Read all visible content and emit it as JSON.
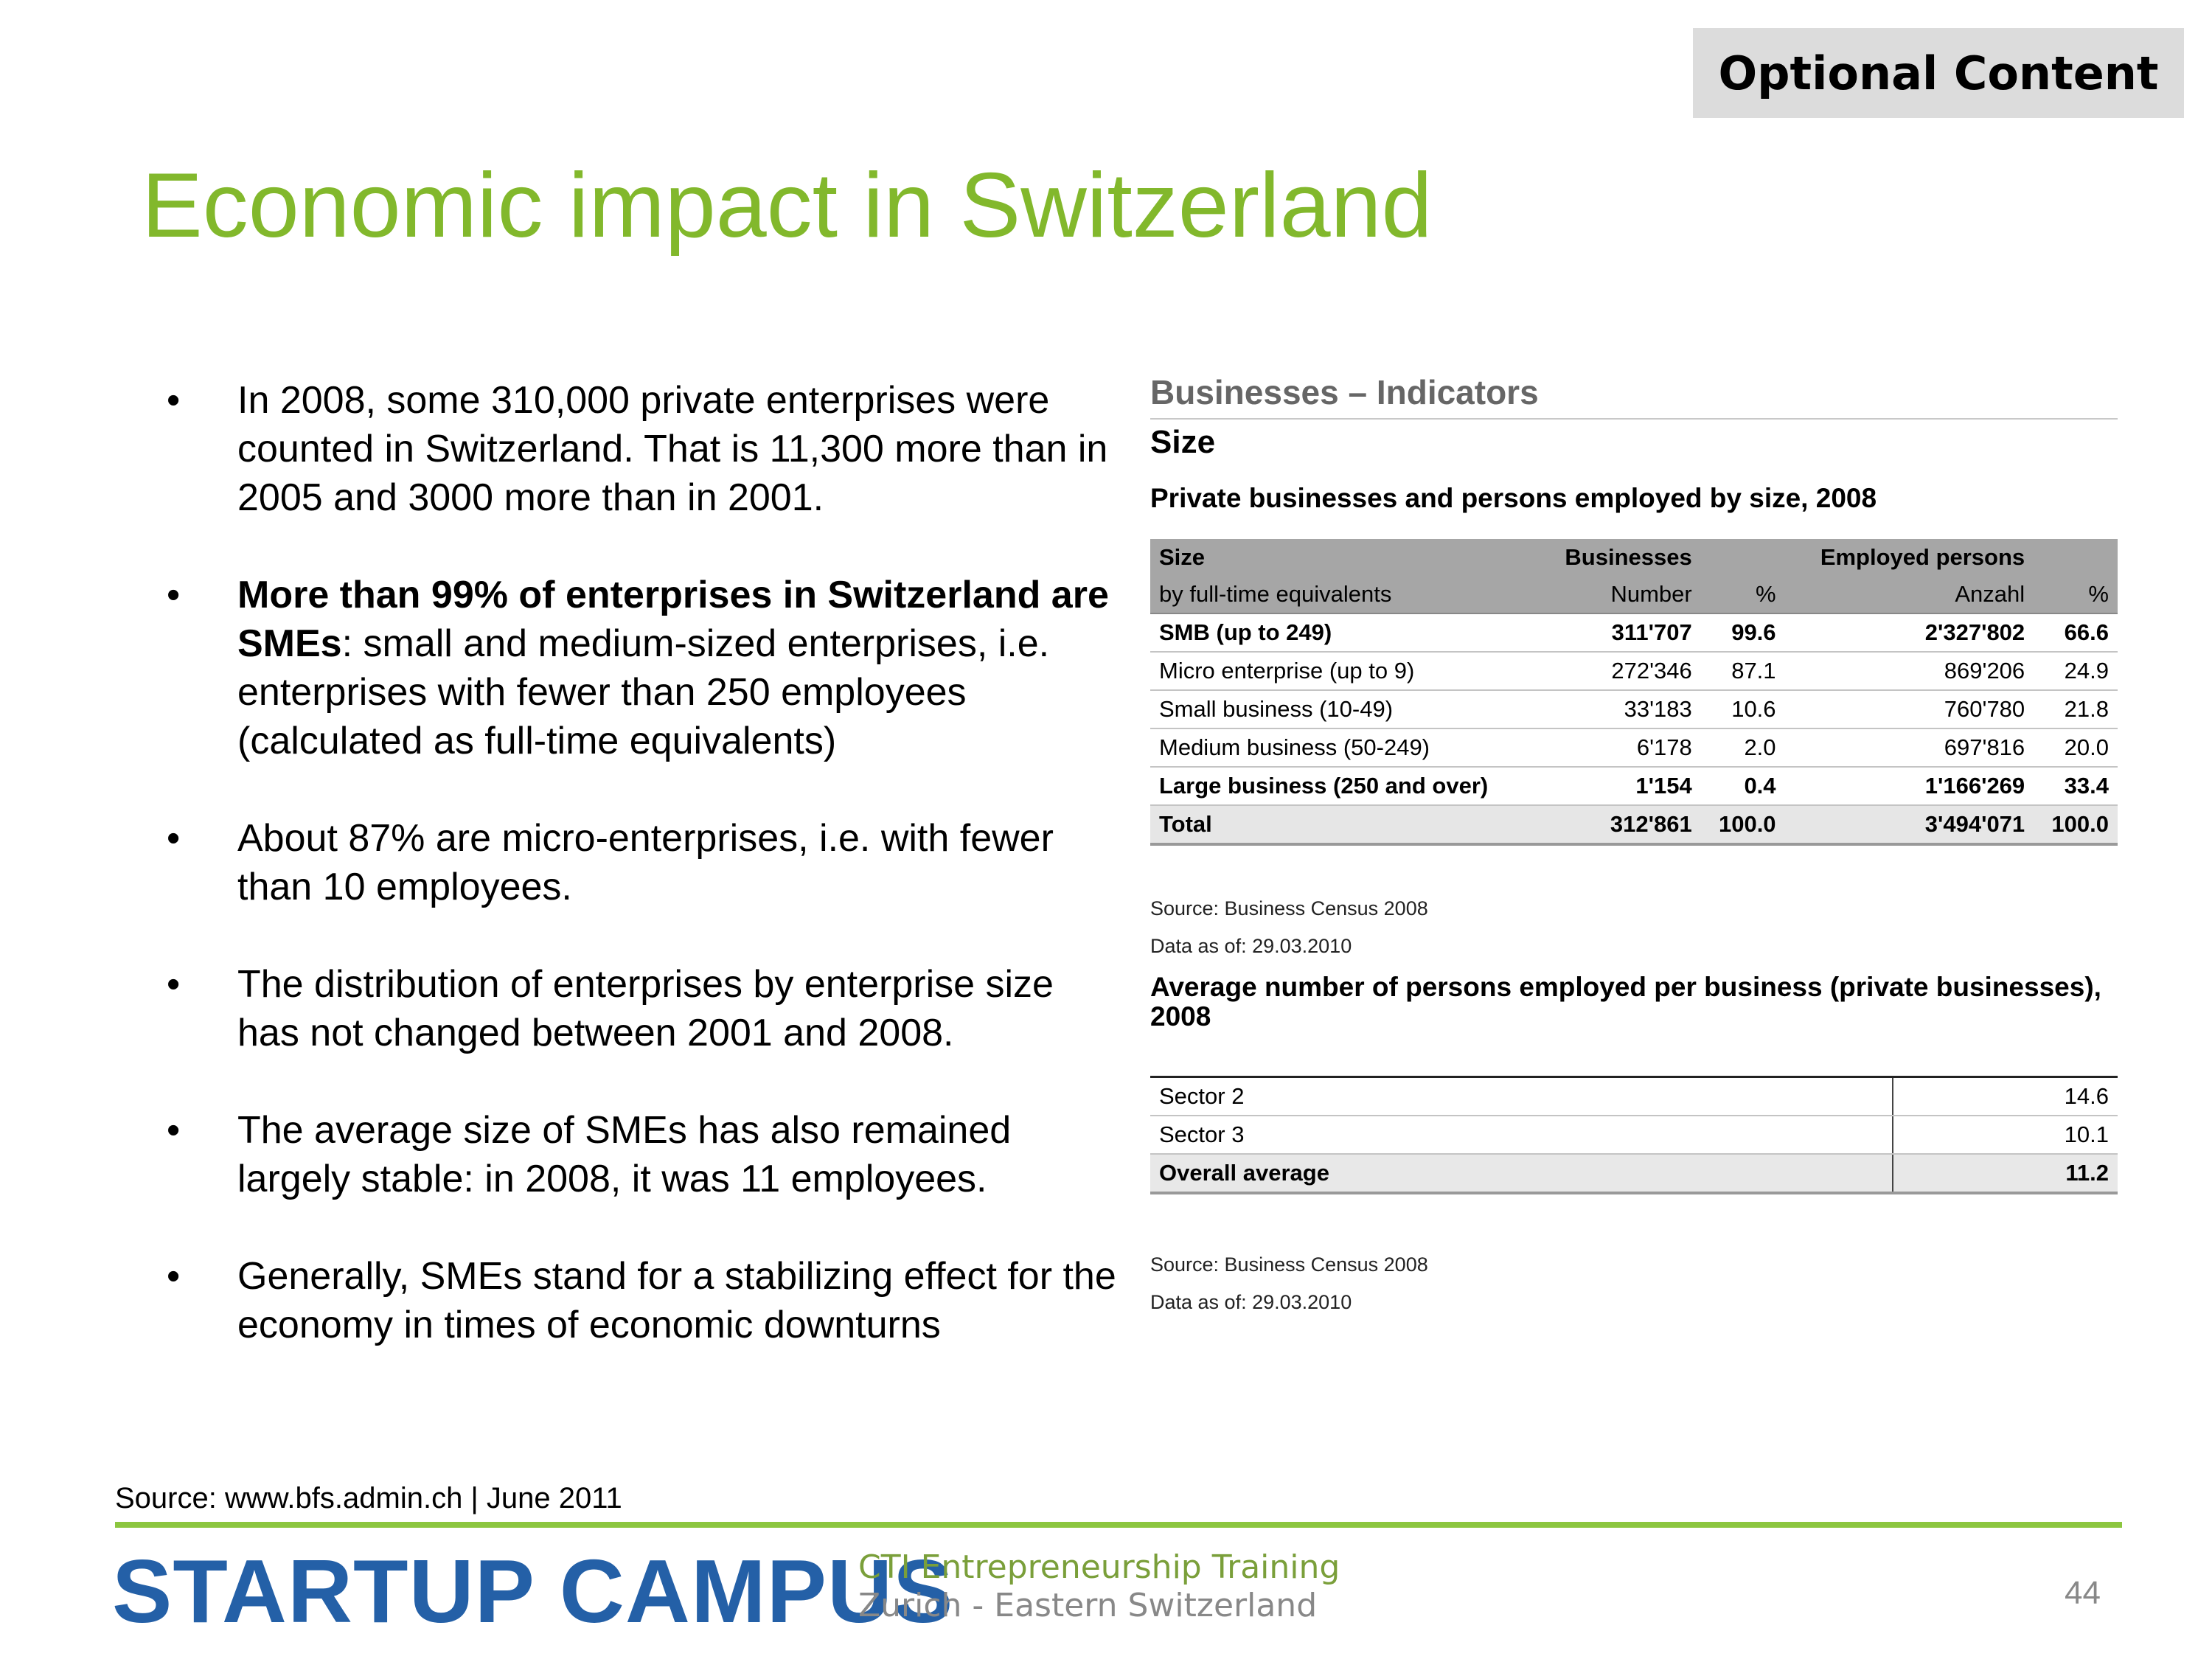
{
  "badge": "Optional Content",
  "title": "Economic impact in Switzerland",
  "bullets": [
    {
      "bold": "",
      "text": "In 2008, some 310,000 private enterprises were counted in Switzerland. That is 11,300 more than in 2005 and 3000 more than in 2001."
    },
    {
      "bold": "More than 99% of enterprises in Switzerland are SMEs",
      "text": ": small and medium-sized enterprises, i.e. enterprises with fewer than 250 employees (calculated as full-time equivalents)"
    },
    {
      "bold": "",
      "text": "About 87% are micro-enterprises, i.e. with fewer than 10 employees."
    },
    {
      "bold": "",
      "text": "The distribution of enterprises by enterprise size has not changed between 2001 and 2008."
    },
    {
      "bold": "",
      "text": "The average size of SMEs has also remained largely stable: in 2008, it was 11 employees."
    },
    {
      "bold": "",
      "text": "Generally, SMEs stand for a stabilizing effect for the economy in times of economic downturns"
    }
  ],
  "panel": {
    "heading": "Businesses – Indicators",
    "subheading": "Size",
    "table1_title": "Private businesses and persons employed by size, 2008",
    "table1_header1": [
      "Size",
      "Businesses",
      "",
      "Employed persons",
      ""
    ],
    "table1_header2": [
      "by full-time equivalents",
      "Number",
      "%",
      "Anzahl",
      "%"
    ],
    "table1_rows": [
      {
        "cells": [
          "SMB (up to 249)",
          "311'707",
          "99.6",
          "2'327'802",
          "66.6"
        ],
        "bold": true
      },
      {
        "cells": [
          "Micro enterprise (up to 9)",
          "272'346",
          "87.1",
          "869'206",
          "24.9"
        ],
        "bold": false
      },
      {
        "cells": [
          "Small business (10-49)",
          "33'183",
          "10.6",
          "760'780",
          "21.8"
        ],
        "bold": false
      },
      {
        "cells": [
          "Medium business (50-249)",
          "6'178",
          "2.0",
          "697'816",
          "20.0"
        ],
        "bold": false
      },
      {
        "cells": [
          "Large business (250 and over)",
          "1'154",
          "0.4",
          "1'166'269",
          "33.4"
        ],
        "bold": true
      }
    ],
    "table1_total": [
      "Total",
      "312'861",
      "100.0",
      "3'494'071",
      "100.0"
    ],
    "source1": "Source: Business Census 2008",
    "date1": "Data as of: 29.03.2010",
    "table2_title": "Average number of persons employed per business (private businesses), 2008",
    "table2_rows": [
      {
        "cells": [
          "Sector 2",
          "14.6"
        ],
        "bold": false
      },
      {
        "cells": [
          "Sector 3",
          "10.1"
        ],
        "bold": false
      },
      {
        "cells": [
          "Overall average",
          "11.2"
        ],
        "bold": true
      }
    ],
    "source2": "Source: Business Census 2008",
    "date2": "Data as of: 29.03.2010"
  },
  "footer": {
    "source": "Source: www.bfs.admin.ch | June 2011",
    "logo": "STARTUP CAMPUS",
    "tagline1": "CTI Entrepreneurship Training",
    "tagline2": "Zurich - Eastern Switzerland",
    "page": "44"
  },
  "colors": {
    "title": "#82b82c",
    "logo": "#2460a7",
    "rule": "#8cc63f"
  }
}
